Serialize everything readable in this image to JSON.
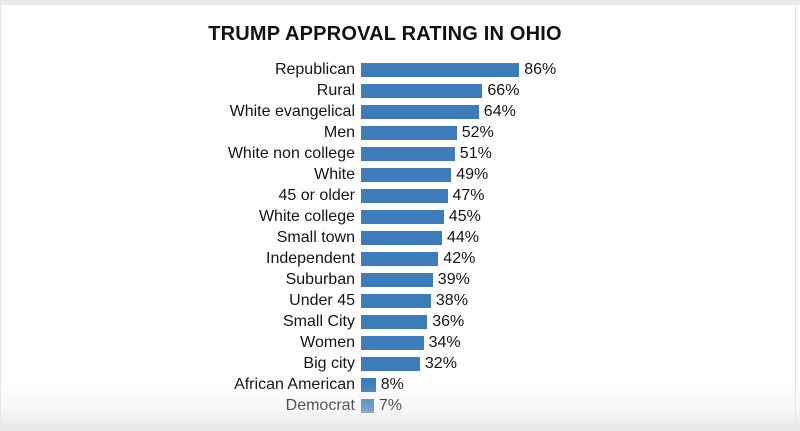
{
  "page": {
    "background": "#ffffff",
    "frame_color": "#e9e9eb"
  },
  "chart_data": {
    "type": "bar",
    "orientation": "horizontal",
    "title": "TRUMP APPROVAL RATING IN OHIO",
    "categories": [
      "Republican",
      "Rural",
      "White evangelical",
      "Men",
      "White non college",
      "White",
      "45 or older",
      "White college",
      "Small town",
      "Independent",
      "Suburban",
      "Under 45",
      "Small City",
      "Women",
      "Big city",
      "African American",
      "Democrat"
    ],
    "values": [
      86,
      66,
      64,
      52,
      51,
      49,
      47,
      45,
      44,
      42,
      39,
      38,
      36,
      34,
      32,
      8,
      7
    ],
    "value_suffix": "%",
    "bar_color": "#3d7cbb",
    "xlim": [
      0,
      100
    ],
    "grid": false,
    "legend": false,
    "value_labels": "end-of-bar"
  }
}
